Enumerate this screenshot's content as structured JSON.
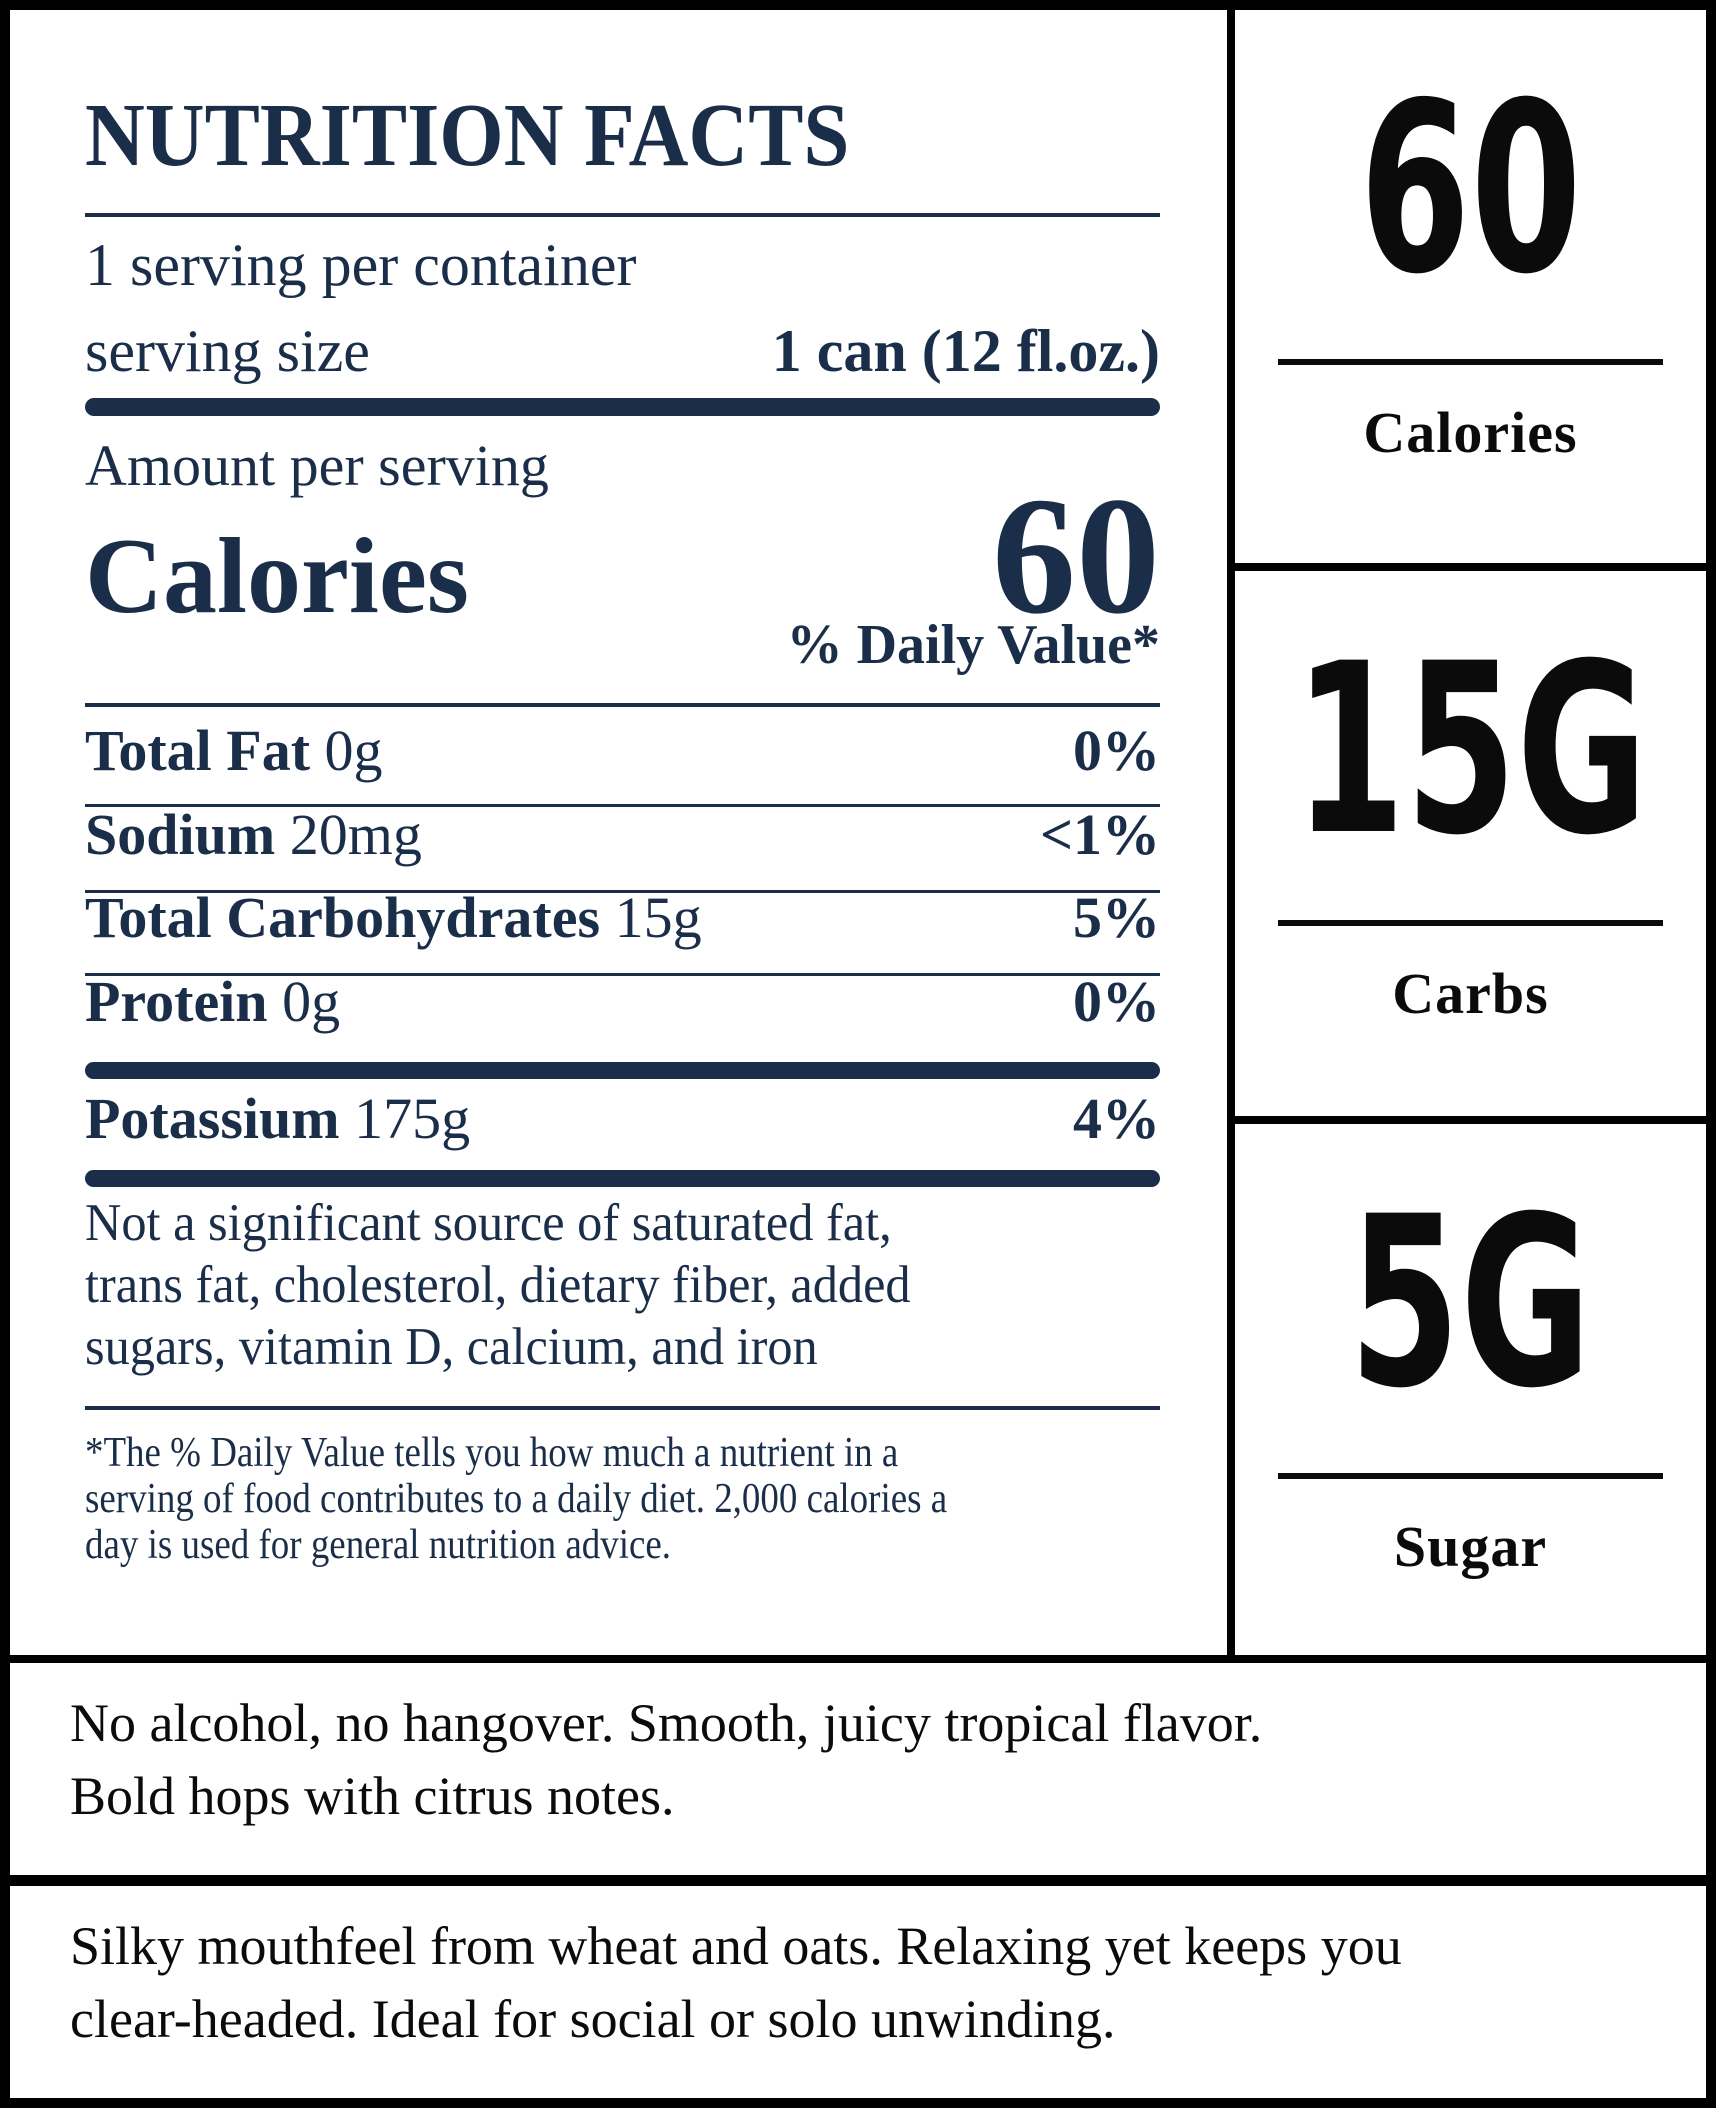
{
  "label": {
    "title": "NUTRITION FACTS",
    "servings_per_container": "1 serving per container",
    "serving_size_label": "serving size",
    "serving_size_value": "1 can (12 fl.oz.)",
    "amount_per_serving": "Amount per serving",
    "calories_label": "Calories",
    "calories_value": "60",
    "daily_value_header": "% Daily Value*",
    "rows": [
      {
        "name": "Total Fat",
        "amount": "0g",
        "dv": "0%"
      },
      {
        "name": "Sodium",
        "amount": "20mg",
        "dv": "<1%"
      },
      {
        "name": "Total Carbohydrates",
        "amount": "15g",
        "dv": "5%"
      },
      {
        "name": "Protein",
        "amount": "0g",
        "dv": "0%"
      }
    ],
    "potassium": {
      "name": "Potassium",
      "amount": "175g",
      "dv": "4%"
    },
    "disclaimer": "Not a significant source of saturated fat,\ntrans fat, cholesterol, dietary fiber, added\nsugars, vitamin D, calcium, and iron",
    "footnote": "*The % Daily Value tells you how much a nutrient in a\nserving of food contributes to a daily diet. 2,000 calories a\nday is used for general nutrition advice."
  },
  "sidebar": {
    "cells": [
      {
        "value": "60",
        "label": "Calories"
      },
      {
        "value": "15G",
        "label": "Carbs"
      },
      {
        "value": "5G",
        "label": "Sugar"
      }
    ]
  },
  "notes": [
    {
      "text": "No alcohol, no hangover. Smooth, juicy tropical flavor.\nBold hops with citrus notes."
    },
    {
      "text": "Silky mouthfeel from wheat and oats. Relaxing yet keeps you\nclear-headed. Ideal for social or solo unwinding."
    }
  ],
  "colors": {
    "navy": "#1b2e49",
    "ink": "#0b0b0b",
    "paper": "#ffffff",
    "frame": "#000000"
  }
}
